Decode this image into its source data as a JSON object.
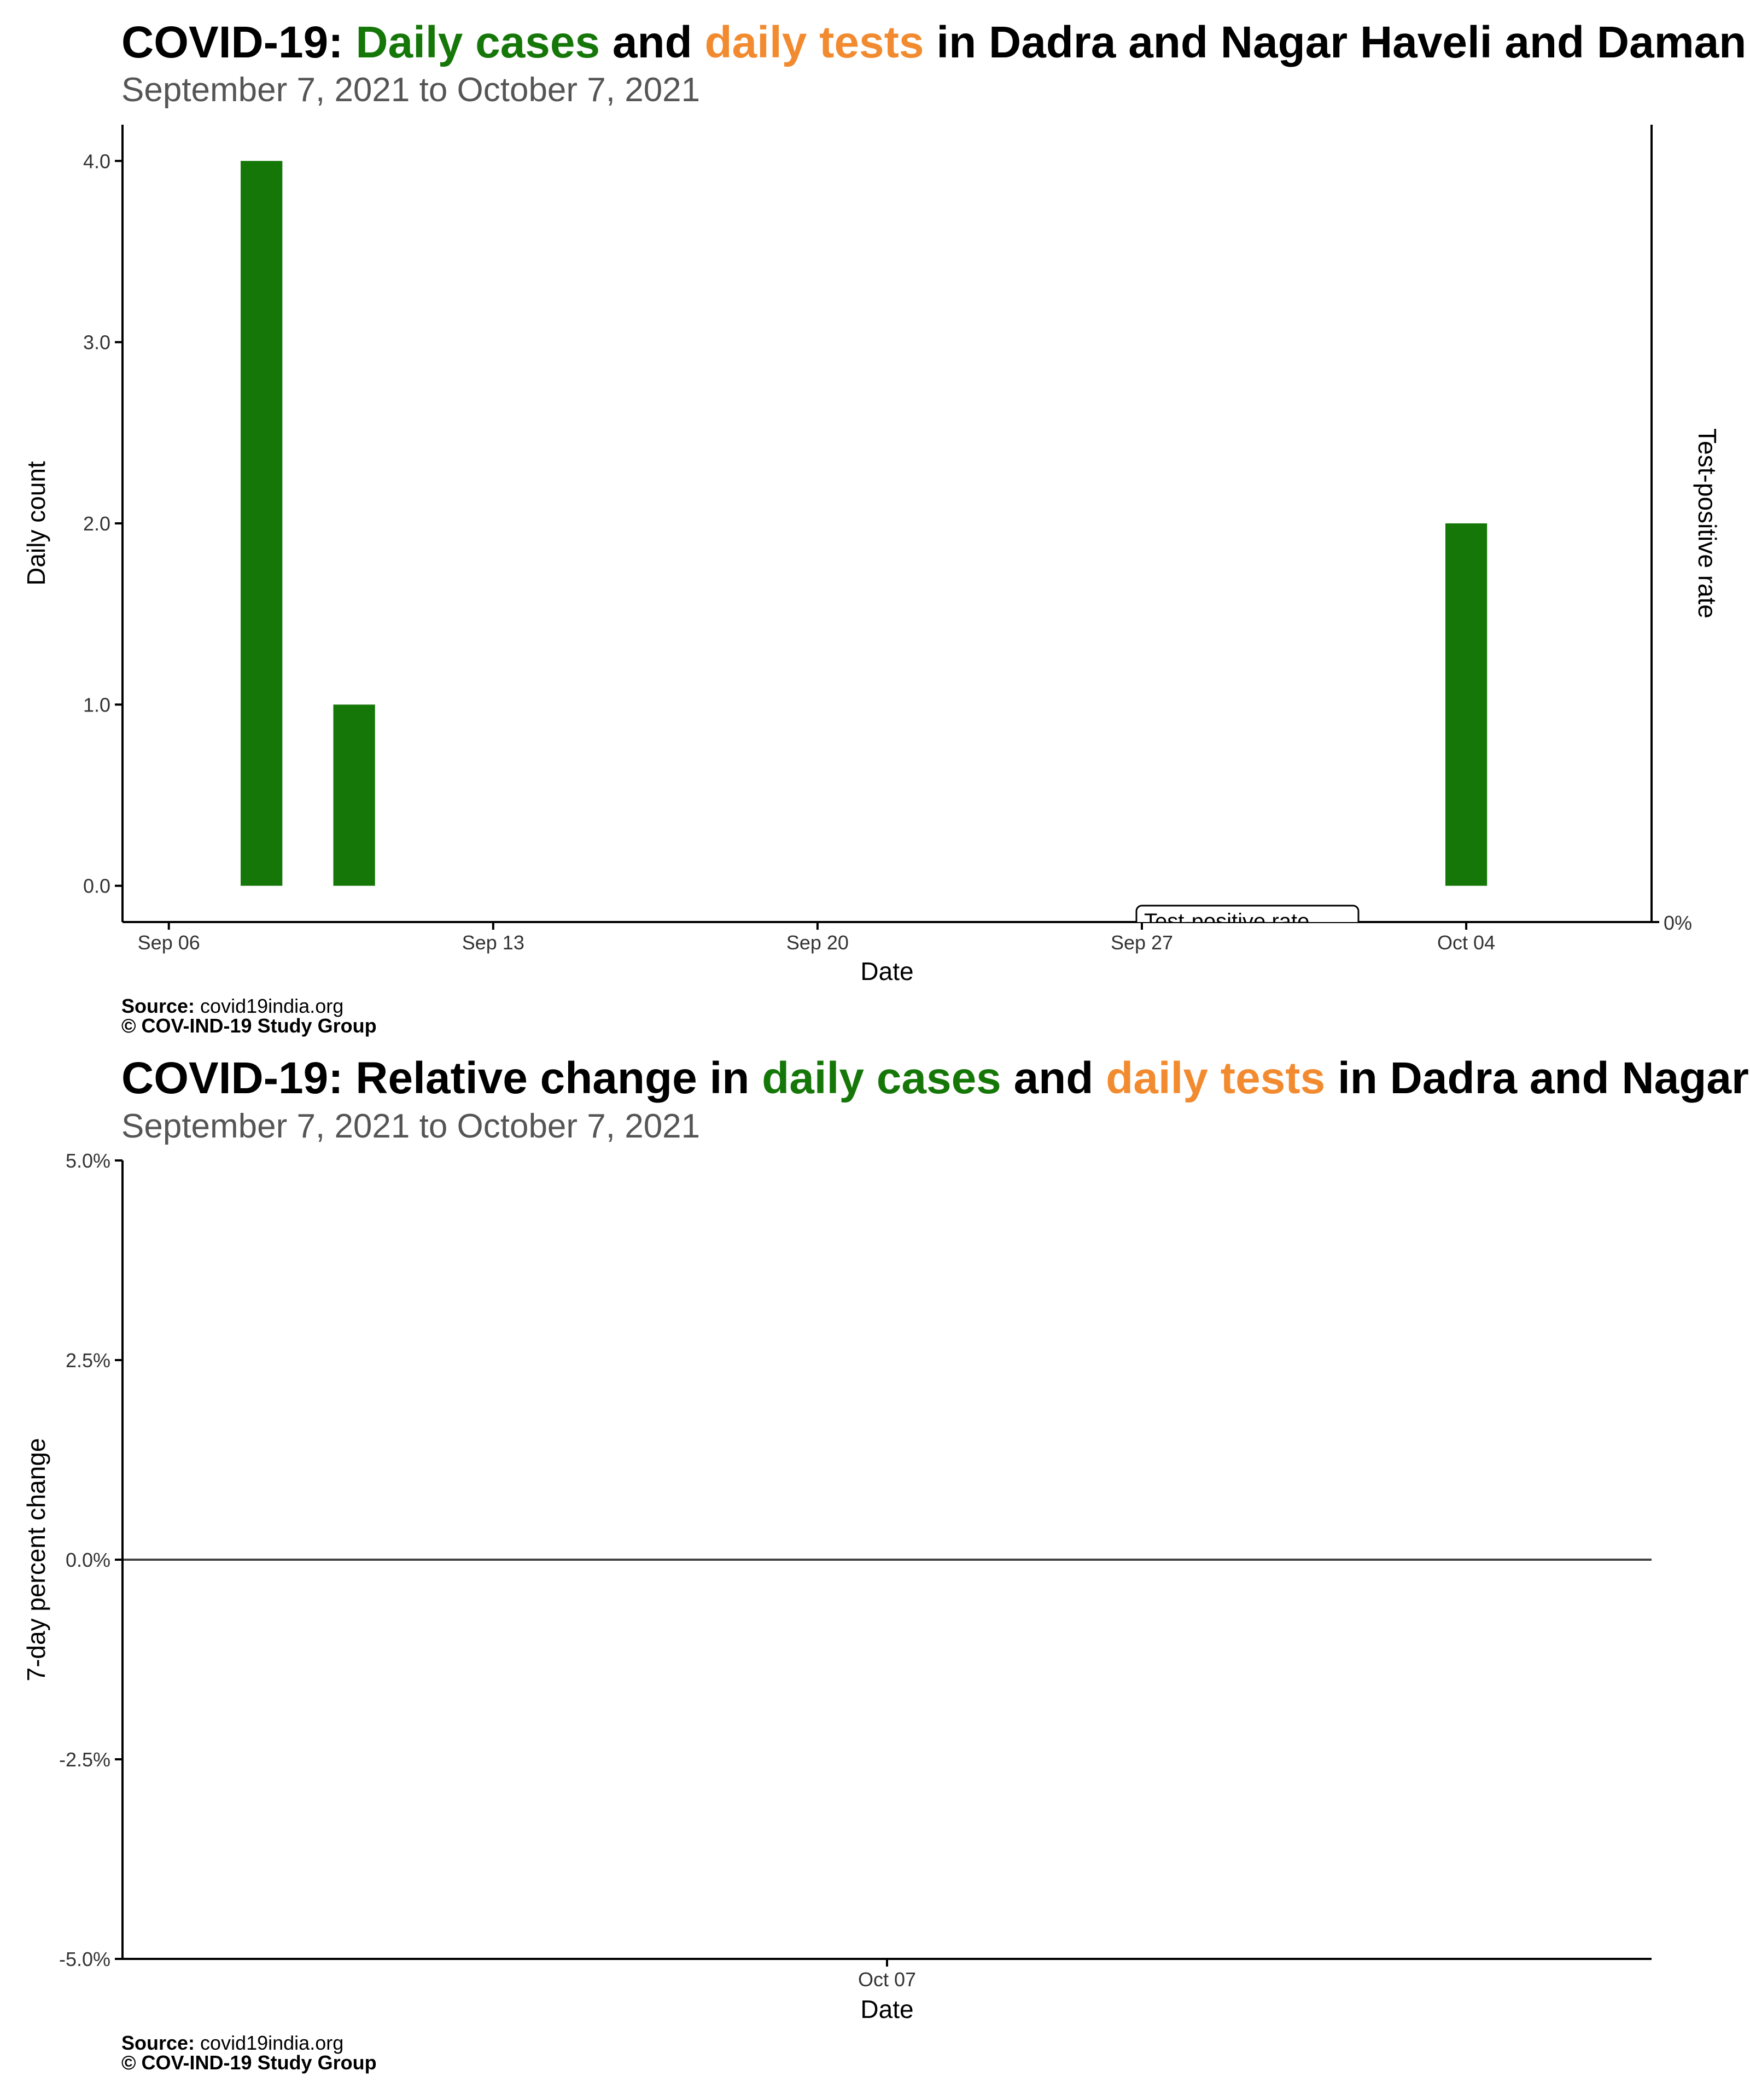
{
  "colors": {
    "cases": "#167709",
    "tests": "#f28b30",
    "text": "#000000",
    "subtitle": "#555555",
    "axis": "#000000",
    "zero_line": "#444444"
  },
  "panel1": {
    "title_prefix": "COVID-19: ",
    "title_cases": "Daily cases",
    "title_and": " and ",
    "title_tests": "daily tests",
    "title_suffix": " in Dadra and Nagar Haveli and Daman and Diu",
    "subtitle": "September  7, 2021 to October  7, 2021",
    "xlabel": "Date",
    "ylabel": "Daily count",
    "ylabel_right": "Test-positive rate",
    "right_tick": "0%",
    "label_box": "Test-positive rate",
    "source_label": "Source:",
    "source_value": " covid19india.org",
    "copyright": "© COV-IND-19 Study Group"
  },
  "panel2": {
    "title_prefix": "COVID-19: Relative change in ",
    "title_cases": "daily cases",
    "title_and": " and ",
    "title_tests": "daily tests",
    "title_suffix": " in Dadra and Nagar Haveli and Daman and Diu",
    "subtitle": "September  7, 2021 to October  7, 2021",
    "xlabel": "Date",
    "ylabel": "7-day percent change",
    "source_label": "Source:",
    "source_value": " covid19india.org",
    "copyright": "© COV-IND-19 Study Group"
  },
  "chart_data": [
    {
      "type": "bar",
      "x": [
        "2021-09-08",
        "2021-09-10",
        "2021-10-04"
      ],
      "series": [
        {
          "name": "Daily cases",
          "values": [
            4,
            1,
            2
          ]
        }
      ],
      "xticks": [
        {
          "date": "2021-09-06",
          "label": "Sep 06"
        },
        {
          "date": "2021-09-13",
          "label": "Sep 13"
        },
        {
          "date": "2021-09-20",
          "label": "Sep 20"
        },
        {
          "date": "2021-09-27",
          "label": "Sep 27"
        },
        {
          "date": "2021-10-04",
          "label": "Oct 04"
        }
      ],
      "xlim": [
        "2021-09-05",
        "2021-10-08"
      ],
      "yticks": [
        {
          "value": 0,
          "label": "0.0"
        },
        {
          "value": 1,
          "label": "1.0"
        },
        {
          "value": 2,
          "label": "2.0"
        },
        {
          "value": 3,
          "label": "3.0"
        },
        {
          "value": 4,
          "label": "4.0"
        }
      ],
      "ylim": [
        -0.2,
        4.2
      ],
      "xlabel": "Date",
      "ylabel": "Daily count",
      "ylabel_right": "Test-positive rate",
      "grid": false
    },
    {
      "type": "line",
      "x": [],
      "series": [],
      "xticks": [
        {
          "date": "2021-10-07",
          "label": "Oct 07"
        }
      ],
      "yticks": [
        {
          "value": 5.0,
          "label": "5.0%"
        },
        {
          "value": 2.5,
          "label": "2.5%"
        },
        {
          "value": 0.0,
          "label": "0.0%"
        },
        {
          "value": -2.5,
          "label": "-2.5%"
        },
        {
          "value": -5.0,
          "label": "-5.0%"
        }
      ],
      "ylim": [
        -5,
        5
      ],
      "reference_line": 0,
      "xlabel": "Date",
      "ylabel": "7-day percent change",
      "grid": false
    }
  ]
}
